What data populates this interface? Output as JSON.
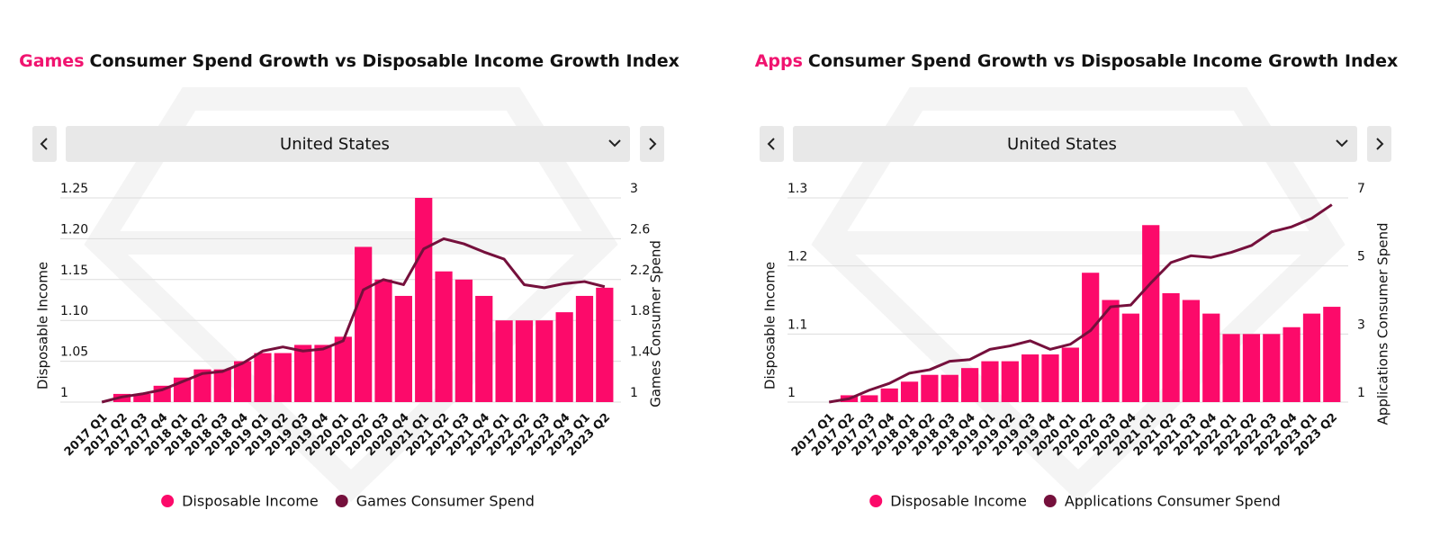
{
  "chart_data": [
    {
      "type": "bar",
      "title_highlight": "Games",
      "title": "Consumer Spend Growth vs Disposable Income Growth Index",
      "dropdown": "United States",
      "y_label": "Disposable Income",
      "y2_label": "Games Consumer Spend",
      "categories": [
        "2017 Q1",
        "2017 Q2",
        "2017 Q3",
        "2017 Q4",
        "2018 Q1",
        "2018 Q2",
        "2018 Q3",
        "2018 Q4",
        "2019 Q1",
        "2019 Q2",
        "2019 Q3",
        "2019 Q4",
        "2020 Q1",
        "2020 Q2",
        "2020 Q3",
        "2020 Q4",
        "2021 Q1",
        "2021 Q2",
        "2021 Q3",
        "2021 Q4",
        "2022 Q1",
        "2022 Q2",
        "2022 Q3",
        "2022 Q4",
        "2023 Q1",
        "2023 Q2"
      ],
      "series": [
        {
          "name": "Disposable Income",
          "color": "#fc0a6a",
          "values": [
            1.0,
            1.01,
            1.01,
            1.02,
            1.03,
            1.04,
            1.04,
            1.05,
            1.06,
            1.06,
            1.07,
            1.07,
            1.08,
            1.19,
            1.15,
            1.13,
            1.25,
            1.16,
            1.15,
            1.13,
            1.1,
            1.1,
            1.1,
            1.11,
            1.13,
            1.14
          ]
        },
        {
          "name": "Games Consumer Spend",
          "color": "#75103c",
          "type": "line",
          "axis": "y2",
          "values": [
            1.0,
            1.05,
            1.08,
            1.12,
            1.2,
            1.28,
            1.3,
            1.38,
            1.5,
            1.54,
            1.5,
            1.52,
            1.6,
            2.1,
            2.2,
            2.15,
            2.5,
            2.6,
            2.55,
            2.47,
            2.4,
            2.15,
            2.12,
            2.16,
            2.18,
            2.13
          ]
        }
      ],
      "ylim": [
        1,
        1.25
      ],
      "yticks": [
        1,
        1.05,
        {
          "value": 1.1,
          "label": "1.10"
        },
        1.15,
        {
          "value": 1.2,
          "label": "1.20"
        },
        1.25
      ],
      "y2lim": [
        1,
        3
      ],
      "y2ticks": [
        1,
        1.4,
        1.8,
        2.2,
        2.6,
        3
      ],
      "grid": true
    },
    {
      "type": "bar",
      "title_highlight": "Apps",
      "title": "Consumer Spend Growth vs Disposable Income Growth Index",
      "dropdown": "United States",
      "y_label": "Disposable Income",
      "y2_label": "Applications Consumer Spend",
      "categories": [
        "2017 Q1",
        "2017 Q2",
        "2017 Q3",
        "2017 Q4",
        "2018 Q1",
        "2018 Q2",
        "2018 Q3",
        "2018 Q4",
        "2019 Q1",
        "2019 Q2",
        "2019 Q3",
        "2019 Q4",
        "2020 Q1",
        "2020 Q2",
        "2020 Q3",
        "2020 Q4",
        "2021 Q1",
        "2021 Q2",
        "2021 Q3",
        "2021 Q4",
        "2022 Q1",
        "2022 Q2",
        "2022 Q3",
        "2022 Q4",
        "2023 Q1",
        "2023 Q2"
      ],
      "series": [
        {
          "name": "Disposable Income",
          "color": "#fc0a6a",
          "values": [
            1.0,
            1.01,
            1.01,
            1.02,
            1.03,
            1.04,
            1.04,
            1.05,
            1.06,
            1.06,
            1.07,
            1.07,
            1.08,
            1.19,
            1.15,
            1.13,
            1.26,
            1.16,
            1.15,
            1.13,
            1.1,
            1.1,
            1.1,
            1.11,
            1.13,
            1.14
          ]
        },
        {
          "name": "Applications Consumer Spend",
          "color": "#75103c",
          "type": "line",
          "axis": "y2",
          "values": [
            1.0,
            1.1,
            1.35,
            1.55,
            1.85,
            1.95,
            2.2,
            2.25,
            2.55,
            2.65,
            2.8,
            2.55,
            2.7,
            3.1,
            3.8,
            3.85,
            4.5,
            5.1,
            5.3,
            5.25,
            5.4,
            5.6,
            6.0,
            6.15,
            6.4,
            6.8
          ]
        }
      ],
      "ylim": [
        1,
        1.3
      ],
      "yticks": [
        1,
        1.1,
        1.2,
        1.3
      ],
      "y2lim": [
        1,
        7
      ],
      "y2ticks": [
        1,
        3,
        5,
        7
      ],
      "grid": true
    }
  ]
}
